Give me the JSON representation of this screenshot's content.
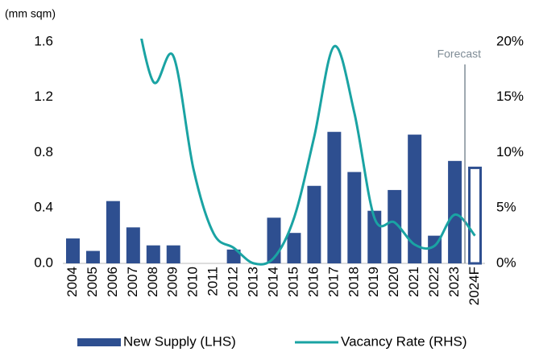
{
  "chart_data": {
    "type": "bar_line",
    "y_label": "(mm sqm)",
    "categories": [
      "2004",
      "2005",
      "2006",
      "2007",
      "2008",
      "2009",
      "2010",
      "2011",
      "2012",
      "2013",
      "2014",
      "2015",
      "2016",
      "2017",
      "2018",
      "2019",
      "2020",
      "2021",
      "2022",
      "2023",
      "2024F"
    ],
    "series": [
      {
        "name": "New Supply (LHS)",
        "type": "bar",
        "color": "#2e4f90",
        "values": [
          0.18,
          0.09,
          0.45,
          0.26,
          0.13,
          0.13,
          0,
          0,
          0.1,
          0,
          0.33,
          0.22,
          0.56,
          0.95,
          0.66,
          0.38,
          0.53,
          0.93,
          0.2,
          0.74,
          0.69
        ]
      },
      {
        "name": "Vacancy Rate (RHS)",
        "type": "line",
        "axis": "y2",
        "color": "#1aa3a3",
        "values": [
          null,
          null,
          null,
          24,
          16.4,
          18.7,
          8.5,
          2.7,
          1.4,
          0,
          0.5,
          4.1,
          11.4,
          19.6,
          13.6,
          4.1,
          3.7,
          1.7,
          1.6,
          4.4,
          2.5
        ]
      }
    ],
    "forecast_from": "2024F",
    "annotation": "Forecast",
    "ylim": [
      0,
      1.6
    ],
    "yticks": [
      {
        "value": 0,
        "label": "0.0"
      },
      0.4,
      0.8,
      1.2,
      1.6
    ],
    "y2lim": [
      0,
      20
    ],
    "y2ticks": [
      {
        "value": 0,
        "label": "0%"
      },
      {
        "value": 5,
        "label": "5%"
      },
      {
        "value": 10,
        "label": "10%"
      },
      {
        "value": 15,
        "label": "15%"
      },
      {
        "value": 20,
        "label": "20%"
      }
    ],
    "grid": false
  }
}
